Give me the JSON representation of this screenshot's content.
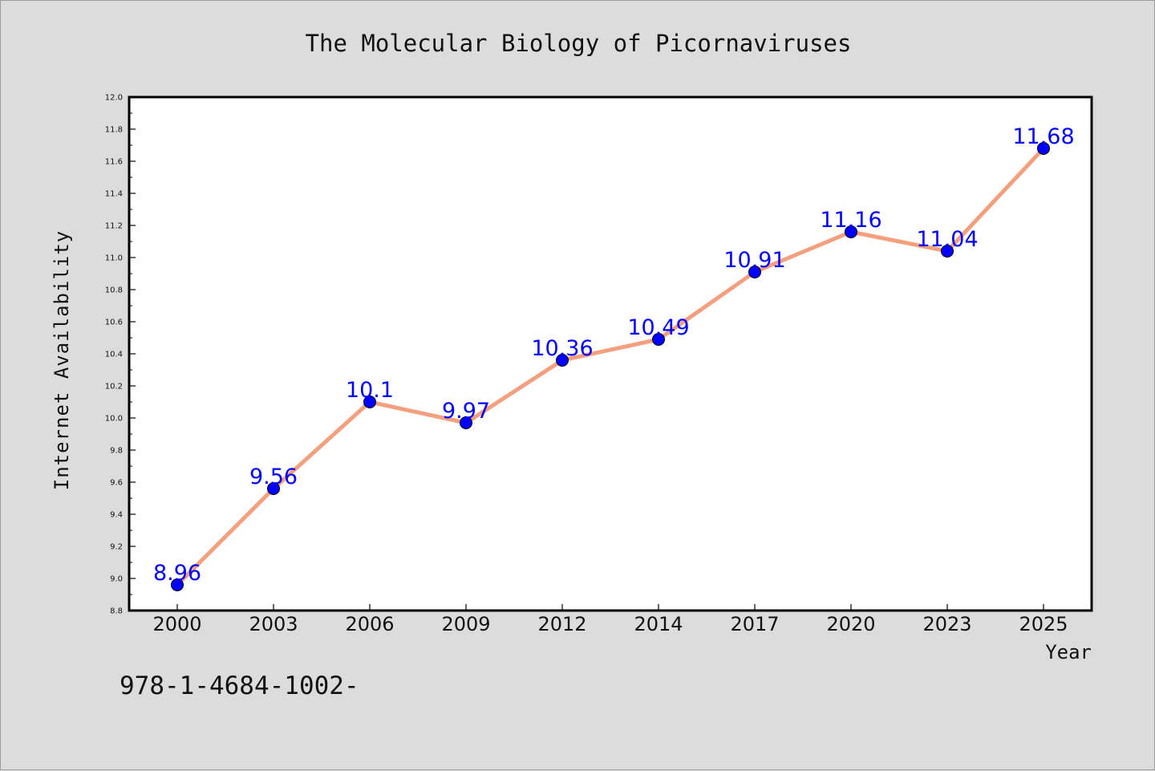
{
  "chart_data": {
    "type": "line",
    "title": "The Molecular Biology of Picornaviruses",
    "xlabel": "Year",
    "ylabel": "Internet Availability",
    "categories": [
      "2000",
      "2003",
      "2006",
      "2009",
      "2012",
      "2014",
      "2017",
      "2020",
      "2023",
      "2025"
    ],
    "series": [
      {
        "values": [
          8.96,
          9.56,
          10.1,
          9.97,
          10.36,
          10.49,
          10.91,
          11.16,
          11.04,
          11.68
        ],
        "labels": [
          "8.96",
          "9.56",
          "10.1",
          "9.97",
          "10.36",
          "10.49",
          "10.91",
          "11.16",
          "11.04",
          "11.68"
        ],
        "line_color": "#f4a07f",
        "marker_color": "#0000ff"
      }
    ],
    "ylim": [
      8.8,
      12.0
    ],
    "yticks": [
      "8.8",
      "9.0",
      "9.2",
      "9.4",
      "9.6",
      "9.8",
      "10.0",
      "10.2",
      "10.4",
      "10.6",
      "10.8",
      "11.0",
      "11.2",
      "11.4",
      "11.6",
      "11.8",
      "12.0"
    ],
    "grid": false,
    "background": "#dcdcdc",
    "plot_background": "#ffffff"
  },
  "footer_text": "978-1-4684-1002-"
}
